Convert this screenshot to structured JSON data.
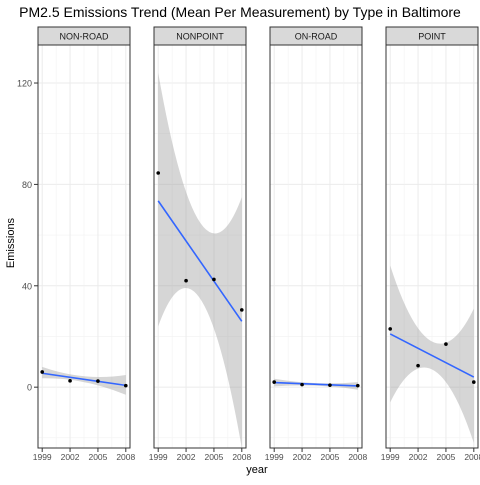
{
  "chart_data": {
    "type": "scatter",
    "title": "PM2.5 Emissions Trend (Mean Per Measurement) by Type in Baltimore",
    "xlabel": "year",
    "ylabel": "Emissions",
    "x_ticks": [
      1999,
      2002,
      2005,
      2008
    ],
    "y_ticks": [
      0,
      40,
      80,
      120
    ],
    "xlim": [
      1999,
      2008
    ],
    "ylim": [
      -24,
      135
    ],
    "grid": true,
    "panels": [
      {
        "name": "NON-ROAD",
        "points": [
          {
            "x": 1999,
            "y": 6.0
          },
          {
            "x": 2002,
            "y": 2.5
          },
          {
            "x": 2005,
            "y": 2.4
          },
          {
            "x": 2008,
            "y": 0.6
          }
        ],
        "trend": {
          "start": 5.5,
          "end": 0.7
        },
        "band": {
          "start": [
            3.5,
            8.0
          ],
          "mid": [
            2.0,
            4.3
          ],
          "end": [
            -3.0,
            4.8
          ]
        }
      },
      {
        "name": "NONPOINT",
        "points": [
          {
            "x": 1999,
            "y": 84.5
          },
          {
            "x": 2002,
            "y": 42.0
          },
          {
            "x": 2005,
            "y": 42.5
          },
          {
            "x": 2008,
            "y": 30.5
          }
        ],
        "trend": {
          "start": 73.5,
          "end": 26.0
        },
        "band": {
          "start": [
            24.0,
            124.0
          ],
          "mid": [
            35.0,
            65.0
          ],
          "end": [
            -24.0,
            75.0
          ]
        }
      },
      {
        "name": "ON-ROAD",
        "points": [
          {
            "x": 1999,
            "y": 2.0
          },
          {
            "x": 2002,
            "y": 1.0
          },
          {
            "x": 2005,
            "y": 0.8
          },
          {
            "x": 2008,
            "y": 0.6
          }
        ],
        "trend": {
          "start": 1.8,
          "end": 0.5
        },
        "band": {
          "start": [
            0.3,
            3.3
          ],
          "mid": [
            0.6,
            1.6
          ],
          "end": [
            -1.0,
            2.0
          ]
        }
      },
      {
        "name": "POINT",
        "points": [
          {
            "x": 1999,
            "y": 23.0
          },
          {
            "x": 2002,
            "y": 8.5
          },
          {
            "x": 2005,
            "y": 17.0
          },
          {
            "x": 2008,
            "y": 2.0
          }
        ],
        "trend": {
          "start": 21.0,
          "end": 4.0
        },
        "band": {
          "start": [
            -6.0,
            48.0
          ],
          "mid": [
            7.0,
            18.0
          ],
          "end": [
            -22.0,
            31.0
          ]
        }
      }
    ],
    "colors": {
      "trend_line": "#3366FF",
      "band": "#999999",
      "strip_fill": "#D9D9D9",
      "grid": "#EBEBEB",
      "point": "#000000",
      "panel_border": "#333333",
      "tick_label": "#4D4D4D",
      "text": "#1A1A1A"
    }
  }
}
